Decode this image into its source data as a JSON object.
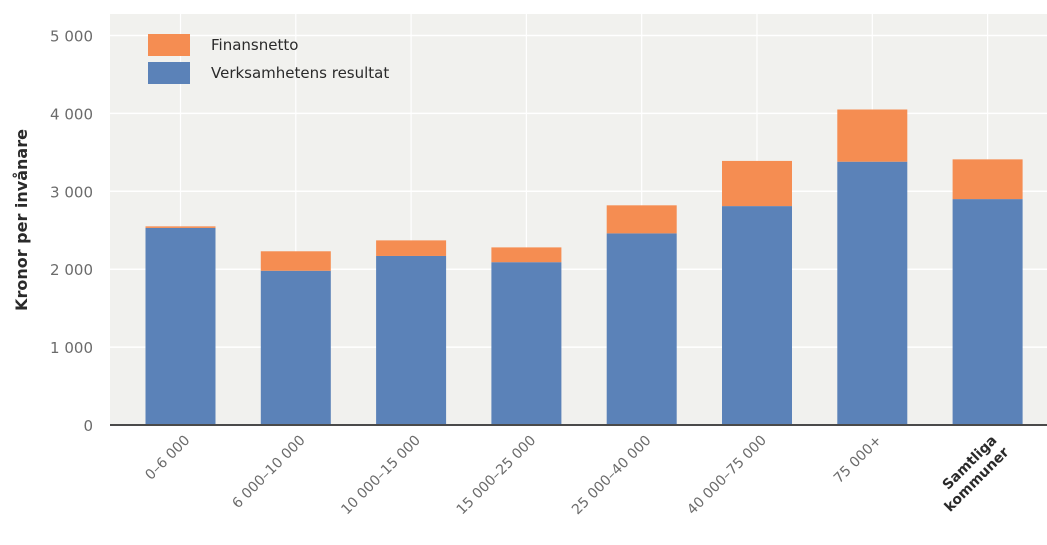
{
  "chart_data": {
    "type": "bar",
    "stacked": true,
    "ylabel": "Kronor per invånare",
    "xlabel": "",
    "ylim": [
      0,
      5200
    ],
    "yticks": [
      0,
      1000,
      2000,
      3000,
      4000,
      5000
    ],
    "ytick_labels": [
      "0",
      "1 000",
      "2 000",
      "3 000",
      "4 000",
      "5 000"
    ],
    "grid": true,
    "legend_position": "top-left",
    "categories": [
      "0–6 000",
      "6 000–10 000",
      "10 000–15 000",
      "15 000–25 000",
      "25 000–40 000",
      "40 000–75 000",
      "75 000+",
      "Samtliga kommuner"
    ],
    "category_label_lines": [
      [
        "0–6 000"
      ],
      [
        "6 000–10 000"
      ],
      [
        "10 000–15 000"
      ],
      [
        "15 000–25 000"
      ],
      [
        "25 000–40 000"
      ],
      [
        "40 000–75 000"
      ],
      [
        "75 000+"
      ],
      [
        "Samtliga",
        "kommuner"
      ]
    ],
    "series": [
      {
        "name": "Verksamhetens resultat",
        "color": "#5b82b8",
        "values": [
          2530,
          1980,
          2170,
          2090,
          2460,
          2810,
          3380,
          2900
        ]
      },
      {
        "name": "Finansnetto",
        "color": "#f58d52",
        "values": [
          20,
          250,
          200,
          190,
          360,
          580,
          670,
          510
        ]
      }
    ],
    "legend_order": [
      "Finansnetto",
      "Verksamhetens resultat"
    ]
  }
}
